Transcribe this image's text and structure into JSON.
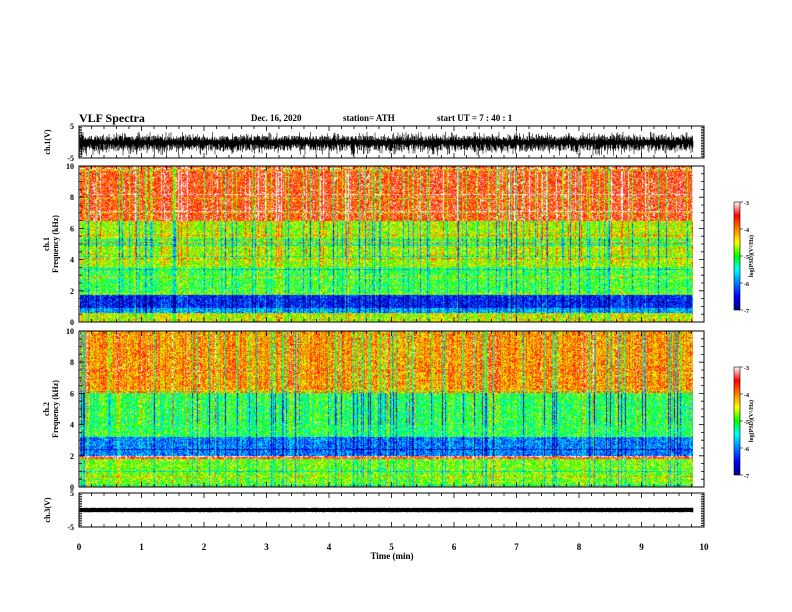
{
  "header": {
    "title": "VLF Spectra",
    "date": "Dec. 16, 2020",
    "station": "station= ATH",
    "start_time": "start  UT  =   7 : 40 : 1"
  },
  "chart_data": [
    {
      "type": "line",
      "panel": "ch1-waveform",
      "ylabel": "ch.1(V)",
      "ylim": [
        -5,
        5
      ],
      "yticks": [
        "5",
        "-5"
      ],
      "xlim": [
        0,
        10
      ],
      "signal_band": [
        -4.3,
        3.2
      ]
    },
    {
      "type": "heatmap",
      "panel": "ch1-spectrogram",
      "ylabel_line1": "ch.1",
      "ylabel_line2": "Frequency  (kHz)",
      "ylim": [
        0,
        10
      ],
      "yticks": [
        "10",
        "8",
        "6",
        "4",
        "2",
        "0"
      ],
      "xlim": [
        0,
        9.83
      ],
      "colorbar": {
        "label": "log(PSD)(V²/Hz)",
        "range": [
          -7,
          -3
        ],
        "ticks": [
          "-3",
          "-4",
          "-5",
          "-6",
          "-7"
        ]
      },
      "typical_log_psd_by_band": [
        {
          "f_range": [
            0,
            0.6
          ],
          "value": -4.5
        },
        {
          "f_range": [
            0.6,
            0.9
          ],
          "value": -5.8
        },
        {
          "f_range": [
            0.9,
            1.7
          ],
          "value": -6.4
        },
        {
          "f_range": [
            1.7,
            3.5
          ],
          "value": -5.0
        },
        {
          "f_range": [
            3.5,
            6.5
          ],
          "value": -4.6
        },
        {
          "f_range": [
            6.5,
            10
          ],
          "value": -3.6
        }
      ]
    },
    {
      "type": "heatmap",
      "panel": "ch2-spectrogram",
      "ylabel_line1": "ch.2",
      "ylabel_line2": "Frequency  (kHz)",
      "ylim": [
        0,
        10
      ],
      "yticks": [
        "10",
        "8",
        "6",
        "4",
        "2",
        "0"
      ],
      "xlim": [
        0,
        9.83
      ],
      "colorbar": {
        "label": "log(PSD)(V²/Hz)",
        "range": [
          -7,
          -3
        ],
        "ticks": [
          "-3",
          "-4",
          "-5",
          "-6",
          "-7"
        ]
      },
      "typical_log_psd_by_band": [
        {
          "f_range": [
            0,
            1.8
          ],
          "value": -4.8
        },
        {
          "f_range": [
            1.8,
            2.0
          ],
          "value": -3.6
        },
        {
          "f_range": [
            2.0,
            3.2
          ],
          "value": -6.0
        },
        {
          "f_range": [
            3.2,
            6.0
          ],
          "value": -5.1
        },
        {
          "f_range": [
            6.0,
            10
          ],
          "value": -4.1
        }
      ]
    },
    {
      "type": "line",
      "panel": "ch3-waveform",
      "ylabel": "ch.3(V)",
      "ylim": [
        -5,
        5
      ],
      "yticks": [
        "5",
        "-5"
      ],
      "xlim": [
        0,
        10
      ],
      "xticks": [
        "0",
        "1",
        "2",
        "3",
        "4",
        "5",
        "6",
        "7",
        "8",
        "9",
        "10"
      ],
      "xlabel": "Time  (min)",
      "signal_band": [
        -0.7,
        0.7
      ],
      "signal_level": 0
    }
  ]
}
